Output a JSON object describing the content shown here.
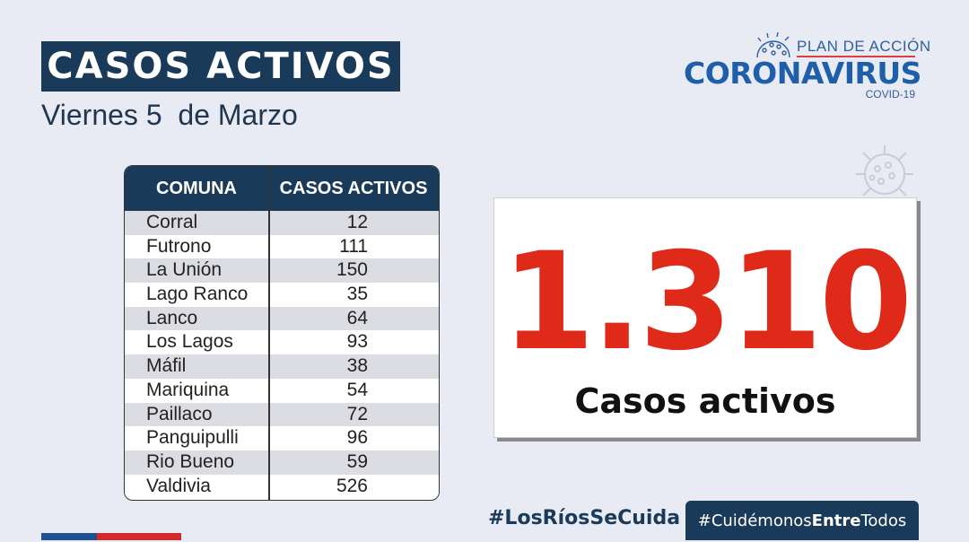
{
  "header": {
    "title": "CASOS ACTIVOS",
    "date": "Viernes 5  de Marzo"
  },
  "logo": {
    "plan": "PLAN DE ACCIÓN",
    "brand": "CORONAVIRUS",
    "sub": "COVID-19"
  },
  "table": {
    "headers": [
      "COMUNA",
      "CASOS ACTIVOS"
    ],
    "rows": [
      {
        "comuna": "Corral",
        "casos": "12"
      },
      {
        "comuna": "Futrono",
        "casos": "111"
      },
      {
        "comuna": "La Unión",
        "casos": "150"
      },
      {
        "comuna": "Lago Ranco",
        "casos": "35"
      },
      {
        "comuna": "Lanco",
        "casos": "64"
      },
      {
        "comuna": "Los Lagos",
        "casos": "93"
      },
      {
        "comuna": "Máfil",
        "casos": "38"
      },
      {
        "comuna": "Mariquina",
        "casos": "54"
      },
      {
        "comuna": "Paillaco",
        "casos": "72"
      },
      {
        "comuna": "Panguipulli",
        "casos": "96"
      },
      {
        "comuna": "Rio Bueno",
        "casos": "59"
      },
      {
        "comuna": "Valdivia",
        "casos": "526"
      }
    ]
  },
  "total": {
    "value": "1.310",
    "label": "Casos activos"
  },
  "hashtags": {
    "first": "#LosRíosSeCuida",
    "second_a": "#Cuidémonos",
    "second_b": "Entre",
    "second_c": "Todos"
  },
  "colors": {
    "navy": "#1a3a5a",
    "red": "#e02a19",
    "brand_blue": "#1f5ea8"
  }
}
